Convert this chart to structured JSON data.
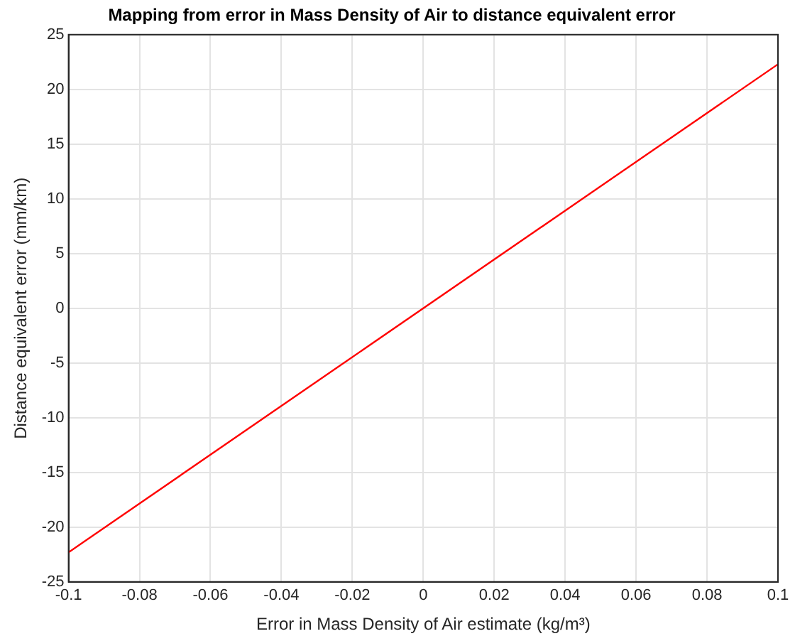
{
  "chart_data": {
    "type": "line",
    "title": "Mapping from error in Mass Density of Air to distance equivalent error",
    "xlabel": "Error in Mass Density of Air estimate (kg/m³)",
    "ylabel": "Distance equivalent error (mm/km)",
    "x": [
      -0.1,
      0.1
    ],
    "series": [
      {
        "color": "#ff0000",
        "values": [
          -22.3,
          22.3
        ]
      }
    ],
    "xlim": [
      -0.1,
      0.1
    ],
    "xticks": [
      -0.1,
      -0.08,
      -0.06,
      -0.04,
      -0.02,
      0,
      0.02,
      0.04,
      0.06,
      0.08,
      0.1
    ],
    "ylim": [
      -25,
      25
    ],
    "yticks": [
      -25,
      -20,
      -15,
      -10,
      -5,
      0,
      5,
      10,
      15,
      20,
      25
    ],
    "grid": true,
    "legend": false,
    "marker": "none",
    "line_style": "solid"
  }
}
